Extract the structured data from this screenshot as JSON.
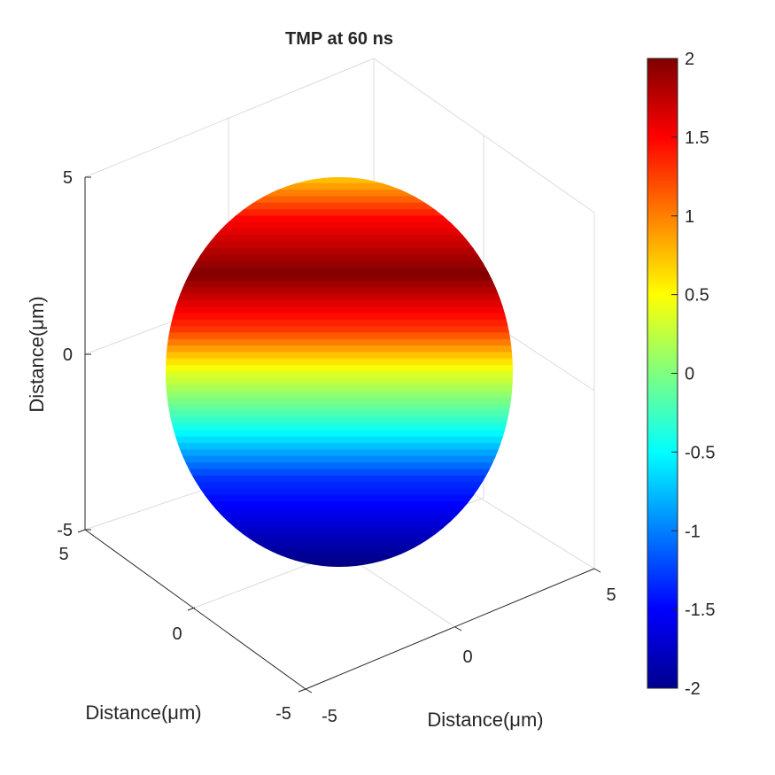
{
  "chart_data": {
    "type": "surface3d",
    "title": "TMP at 60 ns",
    "xlabel": "Distance(μm)",
    "ylabel": "Distance(μm)",
    "zlabel": "Distance(μm)",
    "xlim": [
      -5,
      5
    ],
    "ylim": [
      -5,
      5
    ],
    "zlim": [
      -5,
      5
    ],
    "x_ticks": [
      "-5",
      "0",
      "5"
    ],
    "y_ticks": [
      "-5",
      "0",
      "5"
    ],
    "z_ticks": [
      "-5",
      "0",
      "5"
    ],
    "grid": true,
    "colormap": "jet",
    "surface": {
      "shape": "sphere",
      "radius": 4.9,
      "value_field": "tmp",
      "value_at_top": 0.7,
      "value_at_max_band": 2,
      "value_at_equator": 0.4,
      "value_at_bottom": -2
    },
    "colorbar": {
      "min": -2,
      "max": 2,
      "ticks": [
        "2",
        "1.5",
        "1",
        "0.5",
        "0",
        "-0.5",
        "-1",
        "-1.5",
        "-2"
      ]
    }
  }
}
